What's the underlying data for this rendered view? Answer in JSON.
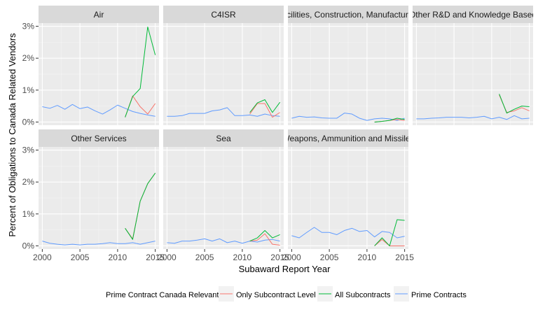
{
  "chart_data": {
    "type": "line",
    "facets": [
      "Air",
      "C4ISR",
      "Facilities, Construction, Manufacturing",
      "Other R&D and Knowledge Based",
      "Other Services",
      "Sea",
      "Weapons, Ammunition and Missiles"
    ],
    "x_ticks": [
      "2000",
      "2005",
      "2010",
      "2015"
    ],
    "y_ticks": [
      "0%",
      "1%",
      "2%",
      "3%"
    ],
    "xlim": [
      1999.5,
      2015.5
    ],
    "ylim": [
      -0.1,
      3.1
    ],
    "xlabel": "Subaward Report Year",
    "ylabel": "Percent of Obligations to Canada Related Vendors",
    "legend": {
      "title": "Prime Contract Canada Relevant",
      "position": "bottom",
      "items": [
        "Only Subcontract Level",
        "All Subcontracts",
        "Prime Contracts"
      ]
    },
    "colors": {
      "Only Subcontract Level": "#F8766D",
      "All Subcontracts": "#00BA38",
      "Prime Contracts": "#619CFF"
    },
    "panels": [
      {
        "facet": "Air",
        "series": [
          {
            "name": "Prime Contracts",
            "x": [
              2000,
              2001,
              2002,
              2003,
              2004,
              2005,
              2006,
              2007,
              2008,
              2009,
              2010,
              2011,
              2012,
              2013,
              2014,
              2015
            ],
            "values": [
              0.48,
              0.43,
              0.52,
              0.4,
              0.55,
              0.42,
              0.47,
              0.35,
              0.25,
              0.38,
              0.53,
              0.43,
              0.33,
              0.27,
              0.22,
              0.18
            ]
          },
          {
            "name": "Only Subcontract Level",
            "x": [
              2011,
              2012,
              2013,
              2014,
              2015
            ],
            "values": [
              0.15,
              0.82,
              0.48,
              0.25,
              0.58
            ]
          },
          {
            "name": "All Subcontracts",
            "x": [
              2011,
              2012,
              2013,
              2014,
              2015
            ],
            "values": [
              0.15,
              0.8,
              1.05,
              2.98,
              2.1
            ]
          }
        ]
      },
      {
        "facet": "C4ISR",
        "series": [
          {
            "name": "Prime Contracts",
            "x": [
              2000,
              2001,
              2002,
              2003,
              2004,
              2005,
              2006,
              2007,
              2008,
              2009,
              2010,
              2011,
              2012,
              2013,
              2014,
              2015
            ],
            "values": [
              0.18,
              0.18,
              0.2,
              0.27,
              0.27,
              0.27,
              0.35,
              0.38,
              0.45,
              0.2,
              0.2,
              0.22,
              0.18,
              0.25,
              0.2,
              0.18
            ]
          },
          {
            "name": "Only Subcontract Level",
            "x": [
              2011,
              2012,
              2013,
              2014,
              2015
            ],
            "values": [
              0.25,
              0.58,
              0.58,
              0.15,
              0.3
            ]
          },
          {
            "name": "All Subcontracts",
            "x": [
              2011,
              2012,
              2013,
              2014,
              2015
            ],
            "values": [
              0.3,
              0.6,
              0.7,
              0.3,
              0.62
            ]
          }
        ]
      },
      {
        "facet": "Facilities, Construction, Manufacturing",
        "series": [
          {
            "name": "Prime Contracts",
            "x": [
              2000,
              2001,
              2002,
              2003,
              2004,
              2005,
              2006,
              2007,
              2008,
              2009,
              2010,
              2011,
              2012,
              2013,
              2014,
              2015
            ],
            "values": [
              0.12,
              0.18,
              0.15,
              0.16,
              0.13,
              0.12,
              0.12,
              0.28,
              0.25,
              0.12,
              0.05,
              0.1,
              0.12,
              0.1,
              0.05,
              0.12
            ]
          },
          {
            "name": "Only Subcontract Level",
            "x": [
              2011,
              2012,
              2013,
              2014,
              2015
            ],
            "values": [
              0.0,
              0.02,
              0.05,
              0.08,
              0.05
            ]
          },
          {
            "name": "All Subcontracts",
            "x": [
              2011,
              2012,
              2013,
              2014,
              2015
            ],
            "values": [
              0.0,
              0.02,
              0.05,
              0.12,
              0.08
            ]
          }
        ]
      },
      {
        "facet": "Other R&D and Knowledge Based",
        "series": [
          {
            "name": "Prime Contracts",
            "x": [
              2000,
              2001,
              2002,
              2003,
              2004,
              2005,
              2006,
              2007,
              2008,
              2009,
              2010,
              2011,
              2012,
              2013,
              2014,
              2015
            ],
            "values": [
              0.1,
              0.1,
              0.12,
              0.13,
              0.15,
              0.15,
              0.15,
              0.13,
              0.15,
              0.18,
              0.1,
              0.15,
              0.08,
              0.2,
              0.1,
              0.12
            ]
          },
          {
            "name": "Only Subcontract Level",
            "x": [
              2011,
              2012,
              2013,
              2014,
              2015
            ],
            "values": [
              0.85,
              0.3,
              0.35,
              0.45,
              0.35
            ]
          },
          {
            "name": "All Subcontracts",
            "x": [
              2011,
              2012,
              2013,
              2014,
              2015
            ],
            "values": [
              0.88,
              0.28,
              0.4,
              0.5,
              0.48
            ]
          }
        ]
      },
      {
        "facet": "Other Services",
        "series": [
          {
            "name": "Prime Contracts",
            "x": [
              2000,
              2001,
              2002,
              2003,
              2004,
              2005,
              2006,
              2007,
              2008,
              2009,
              2010,
              2011,
              2012,
              2013,
              2014,
              2015
            ],
            "values": [
              0.15,
              0.08,
              0.05,
              0.03,
              0.05,
              0.03,
              0.05,
              0.05,
              0.07,
              0.1,
              0.07,
              0.07,
              0.1,
              0.05,
              0.1,
              0.15
            ]
          },
          {
            "name": "Only Subcontract Level",
            "x": [
              2011,
              2012,
              2013,
              2014,
              2015
            ],
            "values": [
              0.55,
              0.22,
              1.4,
              1.95,
              2.28
            ]
          },
          {
            "name": "All Subcontracts",
            "x": [
              2011,
              2012,
              2013,
              2014,
              2015
            ],
            "values": [
              0.55,
              0.2,
              1.4,
              1.95,
              2.28
            ]
          }
        ]
      },
      {
        "facet": "Sea",
        "series": [
          {
            "name": "Prime Contracts",
            "x": [
              2000,
              2001,
              2002,
              2003,
              2004,
              2005,
              2006,
              2007,
              2008,
              2009,
              2010,
              2011,
              2012,
              2013,
              2014,
              2015
            ],
            "values": [
              0.1,
              0.08,
              0.15,
              0.15,
              0.18,
              0.22,
              0.15,
              0.22,
              0.1,
              0.15,
              0.08,
              0.15,
              0.12,
              0.18,
              0.2,
              0.15
            ]
          },
          {
            "name": "Only Subcontract Level",
            "x": [
              2011,
              2012,
              2013,
              2014,
              2015
            ],
            "values": [
              0.15,
              0.18,
              0.38,
              0.05,
              0.02
            ]
          },
          {
            "name": "All Subcontracts",
            "x": [
              2011,
              2012,
              2013,
              2014,
              2015
            ],
            "values": [
              0.15,
              0.25,
              0.48,
              0.25,
              0.35
            ]
          }
        ]
      },
      {
        "facet": "Weapons, Ammunition and Missiles",
        "series": [
          {
            "name": "Prime Contracts",
            "x": [
              2000,
              2001,
              2002,
              2003,
              2004,
              2005,
              2006,
              2007,
              2008,
              2009,
              2010,
              2011,
              2012,
              2013,
              2014,
              2015
            ],
            "values": [
              0.32,
              0.25,
              0.42,
              0.58,
              0.42,
              0.42,
              0.35,
              0.48,
              0.55,
              0.45,
              0.48,
              0.28,
              0.45,
              0.42,
              0.25,
              0.3
            ]
          },
          {
            "name": "Only Subcontract Level",
            "x": [
              2011,
              2012,
              2013,
              2014,
              2015
            ],
            "values": [
              0.0,
              0.2,
              0.0,
              0.0,
              0.0
            ]
          },
          {
            "name": "All Subcontracts",
            "x": [
              2011,
              2012,
              2013,
              2014,
              2015
            ],
            "values": [
              0.0,
              0.25,
              0.0,
              0.82,
              0.8
            ]
          }
        ]
      }
    ]
  }
}
